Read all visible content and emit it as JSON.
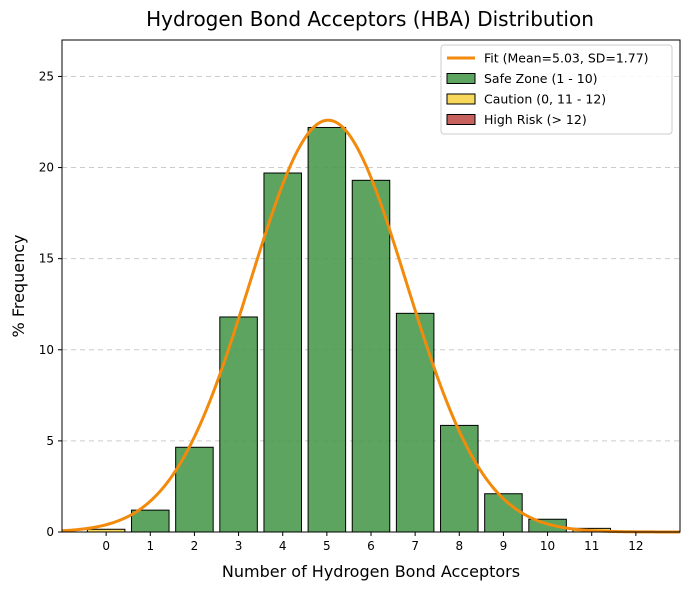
{
  "chart_data": {
    "type": "bar",
    "title": "Hydrogen Bond Acceptors (HBA) Distribution",
    "xlabel": "Number of Hydrogen Bond Acceptors",
    "ylabel": "% Frequency",
    "xlim": [
      -1,
      13
    ],
    "ylim": [
      0,
      27
    ],
    "xticks": [
      "0",
      "1",
      "2",
      "3",
      "4",
      "5",
      "6",
      "7",
      "8",
      "9",
      "10",
      "11",
      "12"
    ],
    "yticks": [
      "0",
      "5",
      "10",
      "15",
      "20",
      "25"
    ],
    "grid": "y-dashed",
    "legend_position": "top-right",
    "categories": [
      0,
      1,
      2,
      3,
      4,
      5,
      6,
      7,
      8,
      9,
      10,
      11,
      12
    ],
    "bars": [
      {
        "x": 0,
        "value": 0.15,
        "zone": "caution"
      },
      {
        "x": 1,
        "value": 1.2,
        "zone": "safe"
      },
      {
        "x": 2,
        "value": 4.65,
        "zone": "safe"
      },
      {
        "x": 3,
        "value": 11.8,
        "zone": "safe"
      },
      {
        "x": 4,
        "value": 19.7,
        "zone": "safe"
      },
      {
        "x": 5,
        "value": 22.2,
        "zone": "safe"
      },
      {
        "x": 6,
        "value": 19.3,
        "zone": "safe"
      },
      {
        "x": 7,
        "value": 12.0,
        "zone": "safe"
      },
      {
        "x": 8,
        "value": 5.85,
        "zone": "safe"
      },
      {
        "x": 9,
        "value": 2.1,
        "zone": "safe"
      },
      {
        "x": 10,
        "value": 0.7,
        "zone": "safe"
      },
      {
        "x": 11,
        "value": 0.2,
        "zone": "caution"
      },
      {
        "x": 12,
        "value": 0.05,
        "zone": "caution"
      }
    ],
    "fit": {
      "mean": 5.03,
      "sd": 1.77,
      "peak": 22.6
    },
    "colors": {
      "safe": "#4a9a4e",
      "caution": "#f7d448",
      "high_risk": "#c0504d",
      "fit": "#f28a0c",
      "grid": "#cccccc"
    },
    "legend": [
      {
        "label": "Fit (Mean=5.03, SD=1.77)",
        "kind": "line",
        "color_key": "fit"
      },
      {
        "label": "Safe Zone (1 - 10)",
        "kind": "patch",
        "color_key": "safe"
      },
      {
        "label": "Caution (0, 11 - 12)",
        "kind": "patch",
        "color_key": "caution"
      },
      {
        "label": "High Risk (> 12)",
        "kind": "patch",
        "color_key": "high_risk"
      }
    ]
  }
}
